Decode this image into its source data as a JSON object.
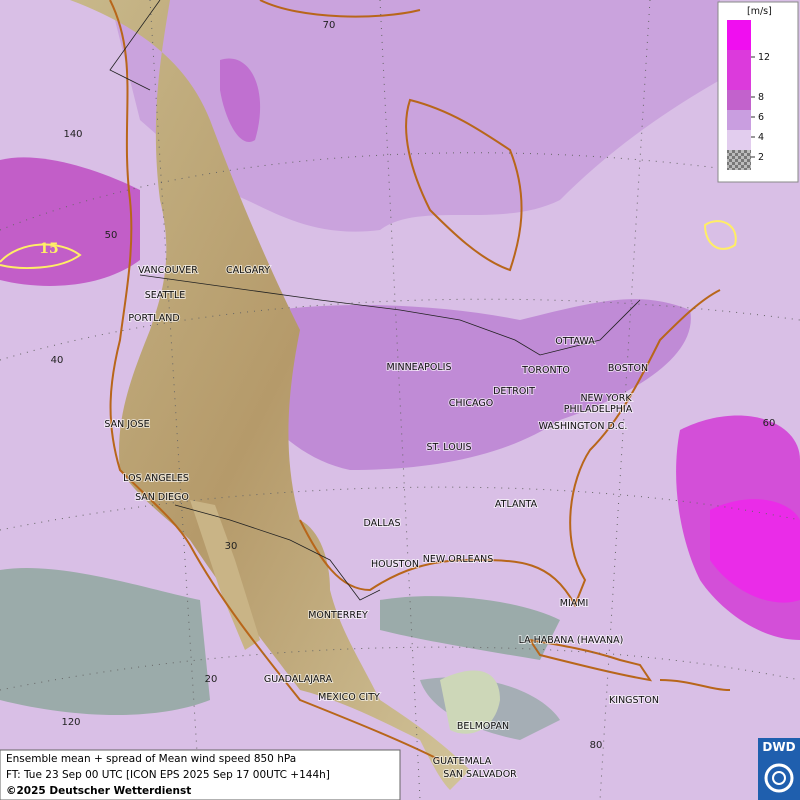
{
  "legend": {
    "unit": "[m/s]",
    "levels": [
      "12",
      "8",
      "6",
      "4",
      "2"
    ]
  },
  "grid_labels": [
    "70",
    "140",
    "50",
    "40",
    "60",
    "30",
    "20",
    "120",
    "80"
  ],
  "contour_labels": [
    "15"
  ],
  "cities": [
    "VANCOUVER",
    "CALGARY",
    "SEATTLE",
    "PORTLAND",
    "MINNEAPOLIS",
    "OTTAWA",
    "TORONTO",
    "BOSTON",
    "DETROIT",
    "NEW YORK",
    "CHICAGO",
    "PHILADELPHIA",
    "WASHINGTON D.C.",
    "SAN JOSE",
    "ST. LOUIS",
    "LOS ANGELES",
    "SAN DIEGO",
    "ATLANTA",
    "DALLAS",
    "HOUSTON",
    "NEW ORLEANS",
    "MIAMI",
    "MONTERREY",
    "LA HABANA (HAVANA)",
    "GUADALAJARA",
    "MEXICO CITY",
    "KINGSTON",
    "BELMOPAN",
    "GUATEMALA",
    "SAN SALVADOR"
  ],
  "footer": {
    "line1": "Ensemble mean + spread of Mean wind speed 850 hPa",
    "line2": "FT: Tue 23 Sep 00 UTC [ICON EPS 2025 Sep 17 00UTC +144h]",
    "line3": "©2025 Deutscher Wetterdienst"
  },
  "logo": "DWD"
}
